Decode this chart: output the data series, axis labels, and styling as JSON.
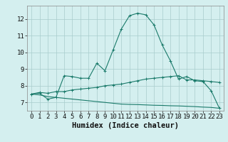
{
  "title": "",
  "xlabel": "Humidex (Indice chaleur)",
  "xlim": [
    -0.5,
    23.5
  ],
  "ylim": [
    6.5,
    12.8
  ],
  "yticks": [
    7,
    8,
    9,
    10,
    11,
    12
  ],
  "xticks": [
    0,
    1,
    2,
    3,
    4,
    5,
    6,
    7,
    8,
    9,
    10,
    11,
    12,
    13,
    14,
    15,
    16,
    17,
    18,
    19,
    20,
    21,
    22,
    23
  ],
  "bg_color": "#d4efef",
  "grid_color": "#a8cccc",
  "line_color": "#1a7a6a",
  "line1_x": [
    0,
    1,
    2,
    3,
    4,
    5,
    6,
    7,
    8,
    9,
    10,
    11,
    12,
    13,
    14,
    15,
    16,
    17,
    18,
    19,
    20,
    21,
    22,
    23
  ],
  "line1_y": [
    7.5,
    7.55,
    7.2,
    7.3,
    8.6,
    8.55,
    8.45,
    8.45,
    9.35,
    8.9,
    10.15,
    11.4,
    12.2,
    12.35,
    12.25,
    11.65,
    10.45,
    9.5,
    8.4,
    8.55,
    8.3,
    8.25,
    7.7,
    6.65
  ],
  "line2_x": [
    0,
    1,
    2,
    3,
    4,
    5,
    6,
    7,
    8,
    9,
    10,
    11,
    12,
    13,
    14,
    15,
    16,
    17,
    18,
    19,
    20,
    21,
    22,
    23
  ],
  "line2_y": [
    7.5,
    7.6,
    7.55,
    7.65,
    7.65,
    7.75,
    7.8,
    7.85,
    7.9,
    8.0,
    8.05,
    8.1,
    8.2,
    8.3,
    8.4,
    8.45,
    8.5,
    8.55,
    8.6,
    8.35,
    8.35,
    8.3,
    8.25,
    8.2
  ],
  "line3_x": [
    0,
    1,
    2,
    3,
    4,
    5,
    6,
    7,
    8,
    9,
    10,
    11,
    12,
    13,
    14,
    15,
    16,
    17,
    18,
    19,
    20,
    21,
    22,
    23
  ],
  "line3_y": [
    7.5,
    7.45,
    7.35,
    7.3,
    7.25,
    7.2,
    7.15,
    7.1,
    7.05,
    7.0,
    6.95,
    6.9,
    6.88,
    6.87,
    6.85,
    6.83,
    6.82,
    6.8,
    6.79,
    6.77,
    6.75,
    6.72,
    6.7,
    6.65
  ],
  "marker": "+",
  "markersize": 3.5,
  "linewidth": 0.8,
  "tick_fontsize": 6.5,
  "xlabel_fontsize": 7.5
}
